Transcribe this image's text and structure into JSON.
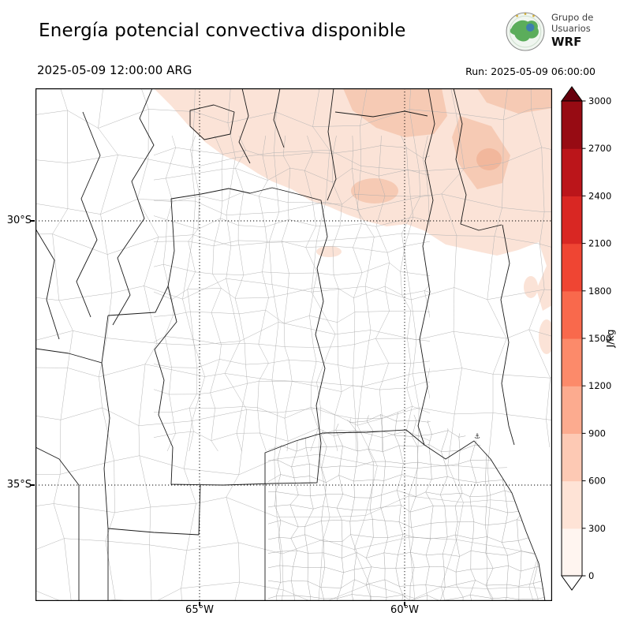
{
  "header": {
    "title": "Energía potencial convectiva disponible",
    "logo": {
      "line1": "Grupo de",
      "line2": "Usuarios",
      "line3": "WRF"
    }
  },
  "subheader": {
    "valid_time": "2025-05-09 12:00:00 ARG",
    "run": "Run: 2025-05-09 06:00:00"
  },
  "map": {
    "lat_ticks": [
      "30°S",
      "35°S"
    ],
    "lon_ticks": [
      "65°W",
      "60°W"
    ]
  },
  "colorbar": {
    "label": "J/kg",
    "ticks": [
      0,
      300,
      600,
      900,
      1200,
      1500,
      1800,
      2100,
      2400,
      2700,
      3000
    ],
    "colors_bottom_to_top": [
      "#fff5f0",
      "#fee3d6",
      "#fdc9b4",
      "#fcab8f",
      "#fc8a6a",
      "#f9694c",
      "#ef4533",
      "#d92723",
      "#bb151a",
      "#970b13"
    ],
    "under_color": "#ffffff",
    "over_color": "#67000d"
  },
  "chart_data": {
    "type": "heatmap",
    "title": "Energía potencial convectiva disponible",
    "units": "J/kg",
    "valid_time": "2025-05-09 12:00:00 ARG",
    "run_time": "Run: 2025-05-09 06:00:00",
    "colorbar_range": [
      0,
      3000
    ],
    "colorbar_ticks": [
      0,
      300,
      600,
      900,
      1200,
      1500,
      1800,
      2100,
      2400,
      2700,
      3000
    ],
    "lat_ticks": [
      "30°S",
      "35°S"
    ],
    "lon_ticks": [
      "65°W",
      "60°W"
    ],
    "regions": [
      {
        "area": "northern band of the domain",
        "cape_jkg": [
          0,
          300
        ]
      },
      {
        "area": "northeast corner (upper right)",
        "cape_jkg": [
          300,
          600
        ]
      },
      {
        "area": "remainder of the domain",
        "cape_jkg": 0
      }
    ]
  }
}
